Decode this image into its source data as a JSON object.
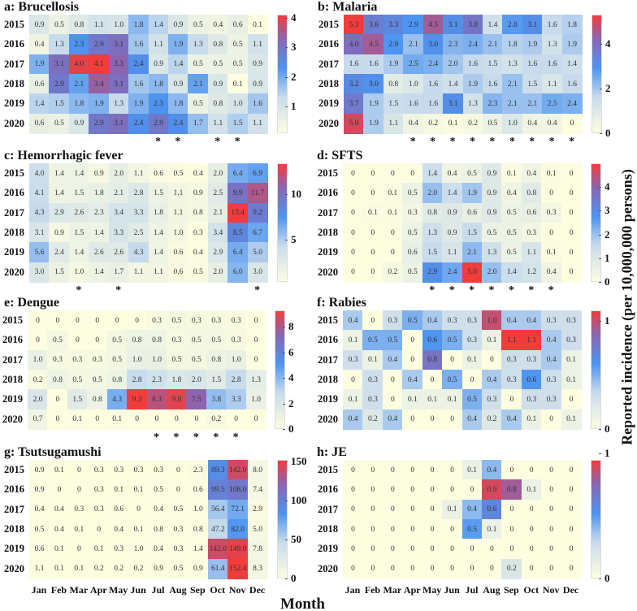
{
  "axis": {
    "xlabel": "Month",
    "ylabel": "Reported incidence (per 10,000,000 persons)"
  },
  "years": [
    "2015",
    "2016",
    "2017",
    "2018",
    "2019",
    "2020"
  ],
  "months": [
    "Jan",
    "Feb",
    "Mar",
    "Apr",
    "May",
    "Jun",
    "Jul",
    "Aug",
    "Sep",
    "Oct",
    "Nov",
    "Dec"
  ],
  "chart_data": [
    {
      "type": "heatmap",
      "title": "a: Brucellosis",
      "vmin": 0.1,
      "vmax": 4.1,
      "ticks": [
        1,
        2,
        3,
        4
      ],
      "stars": [
        6,
        7,
        9,
        10
      ],
      "values": [
        [
          0.9,
          0.5,
          0.8,
          1.1,
          1.0,
          1.8,
          1.4,
          0.9,
          0.5,
          0.4,
          0.6,
          0.1
        ],
        [
          0.4,
          1.3,
          2.3,
          2.9,
          3.1,
          1.6,
          1.1,
          1.9,
          1.3,
          0.8,
          0.5,
          1.1
        ],
        [
          1.9,
          3.1,
          4.0,
          4.1,
          3.3,
          2.4,
          0.9,
          1.4,
          0.5,
          0.5,
          0.5,
          0.9
        ],
        [
          0.6,
          2.9,
          2.1,
          3.4,
          3.1,
          1.6,
          1.8,
          0.9,
          2.1,
          0.9,
          0.1,
          0.9
        ],
        [
          1.4,
          1.5,
          1.8,
          1.9,
          1.3,
          1.9,
          2.3,
          1.8,
          0.5,
          0.8,
          1.0,
          1.6
        ],
        [
          0.6,
          0.5,
          0.9,
          2.9,
          3.1,
          2.4,
          2.9,
          2.4,
          1.7,
          1.1,
          1.5,
          1.1
        ]
      ]
    },
    {
      "type": "heatmap",
      "title": "b: Malaria",
      "vmin": 0,
      "vmax": 5.3,
      "ticks": [
        0,
        2,
        4
      ],
      "stars": [
        3,
        4,
        5,
        6,
        7,
        8,
        9,
        10,
        11
      ],
      "values": [
        [
          5.3,
          3.6,
          3.3,
          2.9,
          4.5,
          3.1,
          3.8,
          1.4,
          2.8,
          3.1,
          1.6,
          1.8
        ],
        [
          4.0,
          4.5,
          2.9,
          2.1,
          3.0,
          2.3,
          2.4,
          2.1,
          1.8,
          1.9,
          1.3,
          1.9
        ],
        [
          1.6,
          1.6,
          1.9,
          2.5,
          2.4,
          2.0,
          1.6,
          1.5,
          1.3,
          1.6,
          1.6,
          1.4
        ],
        [
          3.2,
          3.0,
          0.8,
          1.0,
          1.6,
          1.4,
          1.9,
          1.6,
          2.1,
          1.5,
          1.1,
          1.6
        ],
        [
          3.7,
          1.9,
          1.5,
          1.6,
          1.6,
          3.1,
          1.3,
          2.3,
          2.1,
          2.1,
          2.5,
          2.4
        ],
        [
          5.0,
          1.9,
          1.1,
          0.4,
          0.2,
          0.1,
          0.2,
          0.5,
          1.0,
          0.4,
          0.4,
          0
        ]
      ]
    },
    {
      "type": "heatmap",
      "title": "c: Hemorrhagic fever",
      "vmin": 0.3,
      "vmax": 13.4,
      "ticks": [
        5,
        10
      ],
      "stars": [
        2,
        4,
        11
      ],
      "values": [
        [
          4.0,
          1.4,
          1.4,
          0.9,
          2.0,
          1.1,
          0.6,
          0.5,
          0.4,
          2.0,
          6.4,
          6.9
        ],
        [
          4.1,
          1.4,
          1.5,
          1.8,
          2.1,
          2.8,
          1.5,
          1.1,
          0.9,
          2.5,
          9.9,
          11.7
        ],
        [
          4.3,
          2.9,
          2.6,
          2.3,
          3.4,
          3.3,
          1.8,
          1.1,
          0.8,
          2.1,
          13.4,
          9.2
        ],
        [
          3.1,
          0.9,
          1.5,
          1.4,
          3.3,
          2.5,
          1.4,
          1.0,
          0.3,
          3.4,
          8.5,
          6.7
        ],
        [
          5.6,
          2.4,
          1.4,
          2.6,
          2.6,
          4.3,
          1.4,
          0.6,
          0.4,
          2.9,
          6.4,
          5.0
        ],
        [
          3.0,
          1.5,
          1.0,
          1.4,
          1.7,
          1.1,
          1.1,
          0.6,
          0.5,
          2.0,
          6.0,
          3.0
        ]
      ]
    },
    {
      "type": "heatmap",
      "title": "d: SFTS",
      "vmin": 0,
      "vmax": 5.0,
      "ticks": [
        0,
        1,
        2,
        3,
        4
      ],
      "stars": [
        4,
        5,
        6,
        7,
        8,
        9,
        10
      ],
      "values": [
        [
          0,
          0,
          0,
          0,
          1.4,
          0.4,
          0.5,
          0.9,
          0.1,
          0.4,
          0.1,
          0
        ],
        [
          0,
          0,
          0.1,
          0.5,
          2.0,
          1.4,
          1.9,
          0.9,
          0.4,
          0.8,
          0,
          0
        ],
        [
          0,
          0.1,
          0.1,
          0.3,
          0.8,
          0.9,
          0.6,
          0.9,
          0.5,
          0.6,
          0.3,
          0
        ],
        [
          0,
          0,
          0,
          0.5,
          1.3,
          0.9,
          1.5,
          0.5,
          0.5,
          0.3,
          0,
          0
        ],
        [
          0,
          0,
          0,
          0.6,
          1.5,
          1.1,
          2.1,
          1.3,
          0.5,
          1.1,
          0.1,
          0
        ],
        [
          0,
          0,
          0.2,
          0.5,
          2.9,
          2.4,
          5.0,
          2.0,
          1.4,
          1.2,
          0.4,
          0
        ]
      ]
    },
    {
      "type": "heatmap",
      "title": "e: Dengue",
      "vmin": 0,
      "vmax": 9.3,
      "ticks": [
        0,
        2,
        4,
        6,
        8
      ],
      "stars": [
        6,
        7,
        8,
        9,
        10
      ],
      "values": [
        [
          0,
          0,
          0,
          0,
          0,
          0,
          0.3,
          0.5,
          0.3,
          0.3,
          0.3,
          0
        ],
        [
          0,
          0.5,
          0,
          0,
          0.5,
          0.8,
          0.8,
          0.3,
          0.5,
          0.5,
          0.3,
          0
        ],
        [
          1.0,
          0.3,
          0.3,
          0.3,
          0.5,
          1.0,
          1.0,
          0.5,
          0.5,
          0.8,
          1.0,
          0
        ],
        [
          0.2,
          0.8,
          0.5,
          0.5,
          0.8,
          2.8,
          2.3,
          1.8,
          2.0,
          1.5,
          2.8,
          1.3
        ],
        [
          2.0,
          0,
          1.5,
          0.8,
          4.3,
          9.3,
          8.3,
          9.0,
          7.5,
          3.8,
          3.3,
          1.0
        ],
        [
          0.7,
          0,
          0.1,
          0,
          0.1,
          0,
          0,
          0,
          0,
          0.2,
          0,
          0
        ]
      ]
    },
    {
      "type": "heatmap",
      "title": "f: Rabies",
      "vmin": 0,
      "vmax": 1.1,
      "ticks": [
        0,
        1
      ],
      "stars": [],
      "values": [
        [
          0.4,
          0,
          0.3,
          0.5,
          0.4,
          0.3,
          0.3,
          1.0,
          0.4,
          0.4,
          0.3,
          0.3
        ],
        [
          0.1,
          0.5,
          0.5,
          0,
          0.6,
          0.5,
          0.3,
          0.1,
          1.1,
          1.1,
          0.4,
          0.3
        ],
        [
          0.3,
          0.1,
          0.4,
          0,
          0.8,
          0,
          0.1,
          0,
          0.3,
          0.3,
          0.4,
          0.1
        ],
        [
          0,
          0.3,
          0,
          0.4,
          0,
          0.5,
          0,
          0.4,
          0.3,
          0.6,
          0.3,
          0.1
        ],
        [
          0.1,
          0.3,
          0,
          0.1,
          0.1,
          0.1,
          0.5,
          0.3,
          0,
          0.3,
          0.3,
          0
        ],
        [
          0.4,
          0.2,
          0.4,
          0,
          0,
          0,
          0.4,
          0.2,
          0.4,
          0.1,
          0,
          0.1
        ]
      ]
    },
    {
      "type": "heatmap",
      "title": "g: Tsutsugamushi",
      "vmin": 0,
      "vmax": 152.4,
      "ticks": [
        0,
        50,
        100,
        150
      ],
      "stars": [],
      "values": [
        [
          0.9,
          0.1,
          0,
          0.3,
          0.3,
          0.3,
          0.3,
          0,
          2.3,
          89.3,
          142.0,
          8.0
        ],
        [
          0.9,
          0,
          0,
          0.3,
          0.1,
          0.1,
          0.5,
          0,
          0.6,
          99.5,
          108.0,
          7.4
        ],
        [
          0.4,
          0.4,
          0.3,
          0.3,
          0.6,
          0,
          0.4,
          0.5,
          1.0,
          56.4,
          72.1,
          2.9
        ],
        [
          0.5,
          0.4,
          0.1,
          0,
          0.4,
          0.1,
          0.8,
          0.3,
          0.8,
          47.2,
          82.0,
          5.0
        ],
        [
          0.6,
          0.1,
          0,
          0.1,
          0.3,
          1.0,
          0.4,
          0.3,
          1.4,
          142.0,
          149.0,
          7.8
        ],
        [
          1.1,
          0.1,
          0.1,
          0.2,
          0.2,
          0.2,
          0.9,
          0.5,
          0.9,
          61.4,
          152.4,
          8.3
        ]
      ]
    },
    {
      "type": "heatmap",
      "title": "h: JE",
      "vmin": 0,
      "vmax": 0.95,
      "ticks": [
        0,
        1
      ],
      "stars": [],
      "values": [
        [
          0,
          0,
          0,
          0,
          0,
          0,
          0.1,
          0.4,
          0,
          0,
          0,
          0
        ],
        [
          0,
          0,
          0,
          0,
          0,
          0,
          0,
          0.9,
          0.8,
          0.1,
          0,
          0
        ],
        [
          0,
          0,
          0,
          0,
          0,
          0.1,
          0.4,
          0.6,
          0,
          0,
          0,
          0
        ],
        [
          0,
          0,
          0,
          0,
          0,
          0,
          0.5,
          0.1,
          0,
          0,
          0,
          0
        ],
        [
          0,
          0,
          0,
          0,
          0,
          0,
          0,
          0,
          0,
          0,
          0,
          0
        ],
        [
          0,
          0,
          0,
          0,
          0,
          0,
          0,
          0,
          0.2,
          0,
          0,
          0
        ]
      ]
    }
  ]
}
